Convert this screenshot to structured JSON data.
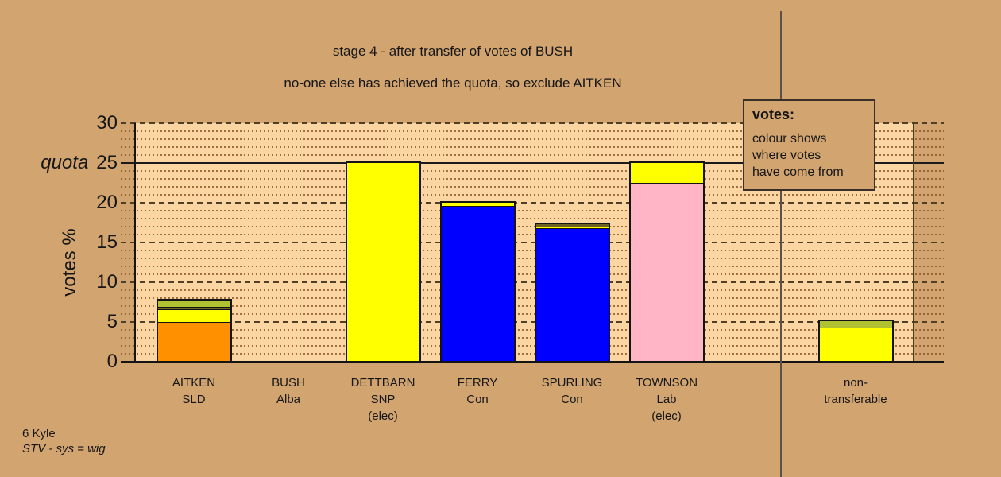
{
  "header": {
    "title": "stage 4 - after transfer of votes of BUSH",
    "subtitle": "no-one else has achieved the quota, so exclude AITKEN"
  },
  "legend": {
    "title": "votes:",
    "lines": [
      "colour shows",
      "where votes",
      "have come from"
    ]
  },
  "footer": {
    "line1": "6 Kyle",
    "line2": "STV - sys = wig"
  },
  "chart_data": {
    "type": "bar",
    "stacked": true,
    "title": "stage 4 - after transfer of votes of BUSH",
    "subtitle": "no-one else has achieved the quota, so exclude AITKEN",
    "ylabel": "votes %",
    "ylim": [
      0,
      30
    ],
    "y_ticks": [
      0,
      5,
      10,
      15,
      20,
      25,
      30
    ],
    "quota": {
      "value": 25,
      "label": "quota"
    },
    "grid": {
      "minor_step": 1,
      "major_step": 5,
      "legend_position": "top-right"
    },
    "colors": {
      "orange": "#FF9100",
      "yellow": "#FFFF00",
      "blue": "#0000FF",
      "pink": "#FFB5C5",
      "yellowgreen": "#B0C232",
      "olive": "#6E6322",
      "plot_fill": "#FBD6A3",
      "background": "#D2A470"
    },
    "categories": [
      {
        "label_lines": [
          "AITKEN",
          "SLD"
        ],
        "total": 7.7,
        "segments": [
          {
            "color": "orange",
            "value": 5.0
          },
          {
            "color": "yellow",
            "value": 1.6
          },
          {
            "color": "olive",
            "value": 0.35
          },
          {
            "color": "yellowgreen",
            "value": 0.75
          }
        ]
      },
      {
        "label_lines": [
          "BUSH",
          "Alba"
        ],
        "total": 0,
        "segments": []
      },
      {
        "label_lines": [
          "DETTBARN",
          "SNP",
          "(elec)"
        ],
        "total": 25.0,
        "segments": [
          {
            "color": "yellow",
            "value": 25.0
          }
        ]
      },
      {
        "label_lines": [
          "FERRY",
          "Con"
        ],
        "total": 20.0,
        "segments": [
          {
            "color": "blue",
            "value": 19.6
          },
          {
            "color": "yellow",
            "value": 0.4
          }
        ]
      },
      {
        "label_lines": [
          "SPURLING",
          "Con"
        ],
        "total": 17.3,
        "segments": [
          {
            "color": "blue",
            "value": 16.85
          },
          {
            "color": "yellow",
            "value": 0.15
          },
          {
            "color": "olive",
            "value": 0.3
          }
        ]
      },
      {
        "label_lines": [
          "TOWNSON",
          "Lab",
          "(elec)"
        ],
        "total": 25.0,
        "segments": [
          {
            "color": "pink",
            "value": 22.5
          },
          {
            "color": "yellow",
            "value": 2.5
          }
        ]
      },
      {
        "label_lines": [],
        "total": 0,
        "segments": []
      },
      {
        "label_lines": [
          "non-",
          "transferable"
        ],
        "total": 5.1,
        "segments": [
          {
            "color": "yellow",
            "value": 4.3
          },
          {
            "color": "yellowgreen",
            "value": 0.8
          }
        ]
      }
    ]
  }
}
